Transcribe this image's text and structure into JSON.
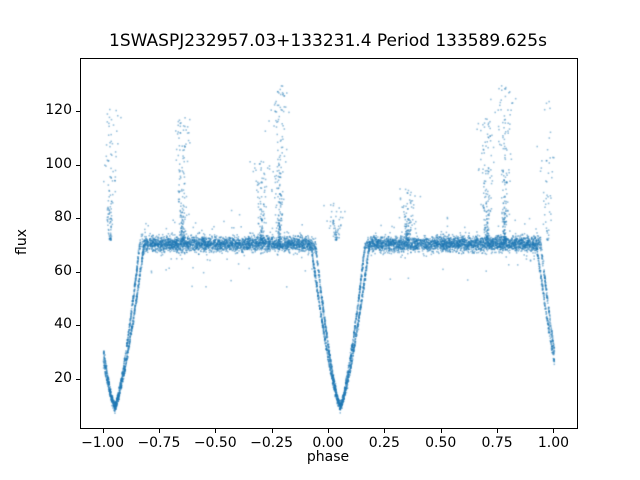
{
  "chart_data": {
    "type": "scatter",
    "title": "1SWASPJ232957.03+133231.4 Period 133589.625s",
    "xlabel": "phase",
    "ylabel": "flux",
    "xlim": [
      -1.1,
      1.1
    ],
    "ylim": [
      2,
      140
    ],
    "xtick_values": [
      -1.0,
      -0.75,
      -0.5,
      -0.25,
      0.0,
      0.25,
      0.5,
      0.75,
      1.0
    ],
    "xtick_labels": [
      "−1.00",
      "−0.75",
      "−0.50",
      "−0.25",
      "0.00",
      "0.25",
      "0.50",
      "0.75",
      "1.00"
    ],
    "ytick_values": [
      20,
      40,
      60,
      80,
      100,
      120
    ],
    "ytick_labels": [
      "20",
      "40",
      "60",
      "80",
      "100",
      "120"
    ],
    "marker_color": "#1f77b4",
    "marker_alpha": 0.45,
    "marker_size": 1.6,
    "grid": false,
    "legend": "none",
    "model": {
      "description": "phase-folded eclipsing binary light curve: flat baseline, deep V eclipses repeating every 1.0 in phase, plus vertical flare/outlier columns",
      "baseline_flux": 70.8,
      "noise_sigma": 1.4,
      "n_baseline_points": 7500,
      "eclipses": [
        {
          "center": -0.95,
          "half_width": 0.13,
          "min_flux": 10,
          "extra_points": 550
        },
        {
          "center": 0.05,
          "half_width": 0.13,
          "min_flux": 10,
          "extra_points": 550
        },
        {
          "center": 1.05,
          "half_width": 0.13,
          "min_flux": 10,
          "extra_points": 250
        }
      ],
      "flare_columns": [
        {
          "phase": -0.97,
          "max_flux": 122,
          "points": 110
        },
        {
          "phase": -0.65,
          "max_flux": 118,
          "points": 150
        },
        {
          "phase": -0.3,
          "max_flux": 102,
          "points": 110
        },
        {
          "phase": -0.22,
          "max_flux": 130,
          "points": 170
        },
        {
          "phase": 0.03,
          "max_flux": 86,
          "points": 60
        },
        {
          "phase": 0.35,
          "max_flux": 92,
          "points": 100
        },
        {
          "phase": 0.7,
          "max_flux": 118,
          "points": 150
        },
        {
          "phase": 0.78,
          "max_flux": 130,
          "points": 170
        },
        {
          "phase": 0.97,
          "max_flux": 125,
          "points": 50
        }
      ]
    }
  }
}
